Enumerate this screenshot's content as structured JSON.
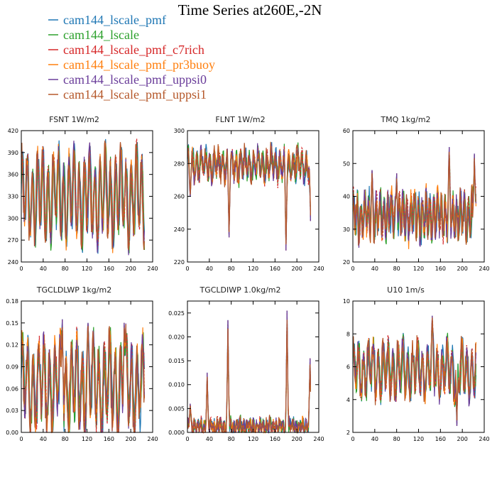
{
  "figure": {
    "title": "Time Series at260E,-2N"
  },
  "legend": [
    {
      "name": "cam144_lscale_pmf",
      "color": "#1f77b4"
    },
    {
      "name": "cam144_lscale",
      "color": "#2ca02c"
    },
    {
      "name": "cam144_lscale_pmf_c7rich",
      "color": "#d62728"
    },
    {
      "name": "cam144_lscale_pmf_pr3buoy",
      "color": "#ff7f0e"
    },
    {
      "name": "cam144_lscale_pmf_uppsi0",
      "color": "#6a3d9a"
    },
    {
      "name": "cam144_lscale_pmf_uppsi1",
      "color": "#b5582a"
    }
  ],
  "chart_data": [
    {
      "type": "line",
      "title": "FSNT   1W/m2",
      "xlim": [
        0,
        240
      ],
      "ylim": [
        240,
        420
      ],
      "xticks": [
        "0",
        "40",
        "80",
        "120",
        "160",
        "200",
        "240"
      ],
      "yticks": [
        "240",
        "270",
        "300",
        "330",
        "360",
        "390",
        "420"
      ],
      "x_count": 226,
      "signal": {
        "base": 330,
        "amplitude": 50,
        "period": 9.5,
        "noise": 14,
        "spikes": []
      },
      "series_names": [
        "cam144_lscale_pmf",
        "cam144_lscale",
        "cam144_lscale_pmf_c7rich",
        "cam144_lscale_pmf_pr3buoy",
        "cam144_lscale_pmf_uppsi0",
        "cam144_lscale_pmf_uppsi1"
      ]
    },
    {
      "type": "line",
      "title": "FLNT   1W/m2",
      "xlim": [
        0,
        240
      ],
      "ylim": [
        220,
        300
      ],
      "xticks": [
        "0",
        "40",
        "80",
        "120",
        "160",
        "200",
        "240"
      ],
      "yticks": [
        "220",
        "240",
        "260",
        "280",
        "300"
      ],
      "x_count": 226,
      "signal": {
        "base": 279,
        "amplitude": 7,
        "period": 8,
        "noise": 5,
        "spikes": [
          {
            "x": 5,
            "y": 260
          },
          {
            "x": 76,
            "y": 235
          },
          {
            "x": 180,
            "y": 227
          },
          {
            "x": 225,
            "y": 245
          }
        ]
      },
      "series_names": [
        "cam144_lscale_pmf",
        "cam144_lscale",
        "cam144_lscale_pmf_c7rich",
        "cam144_lscale_pmf_pr3buoy",
        "cam144_lscale_pmf_uppsi0",
        "cam144_lscale_pmf_uppsi1"
      ]
    },
    {
      "type": "line",
      "title": "TMQ   1kg/m2",
      "xlim": [
        0,
        240
      ],
      "ylim": [
        20,
        60
      ],
      "xticks": [
        "0",
        "40",
        "80",
        "120",
        "160",
        "200",
        "240"
      ],
      "yticks": [
        "20",
        "30",
        "40",
        "50",
        "60"
      ],
      "x_count": 226,
      "signal": {
        "base": 34,
        "amplitude": 5,
        "period": 7,
        "noise": 3.5,
        "spikes": [
          {
            "x": 35,
            "y": 48
          },
          {
            "x": 80,
            "y": 47
          },
          {
            "x": 176,
            "y": 55
          },
          {
            "x": 222,
            "y": 53
          }
        ]
      },
      "series_names": [
        "cam144_lscale_pmf",
        "cam144_lscale",
        "cam144_lscale_pmf_c7rich",
        "cam144_lscale_pmf_pr3buoy",
        "cam144_lscale_pmf_uppsi0",
        "cam144_lscale_pmf_uppsi1"
      ]
    },
    {
      "type": "line",
      "title": "TGCLDLWP   1kg/m2",
      "xlim": [
        0,
        240
      ],
      "ylim": [
        0,
        0.18
      ],
      "xticks": [
        "0",
        "40",
        "80",
        "120",
        "160",
        "200",
        "240"
      ],
      "yticks": [
        "0.00",
        "0.03",
        "0.06",
        "0.09",
        "0.12",
        "0.15",
        "0.18"
      ],
      "x_count": 226,
      "signal": {
        "base": 0.065,
        "amplitude": 0.05,
        "period": 10,
        "noise": 0.02,
        "spikes": [
          {
            "x": 75,
            "y": 0.155
          },
          {
            "x": 122,
            "y": 0.15
          },
          {
            "x": 188,
            "y": 0.15
          }
        ]
      },
      "series_names": [
        "cam144_lscale_pmf",
        "cam144_lscale",
        "cam144_lscale_pmf_c7rich",
        "cam144_lscale_pmf_pr3buoy",
        "cam144_lscale_pmf_uppsi0",
        "cam144_lscale_pmf_uppsi1"
      ]
    },
    {
      "type": "line",
      "title": "TGCLDIWP   1.0kg/m2",
      "xlim": [
        0,
        240
      ],
      "ylim": [
        0,
        0.0275
      ],
      "xticks": [
        "0",
        "40",
        "80",
        "120",
        "160",
        "200",
        "240"
      ],
      "yticks": [
        "0.000",
        "0.005",
        "0.010",
        "0.015",
        "0.020",
        "0.025"
      ],
      "x_count": 226,
      "signal": {
        "base": 0.0012,
        "amplitude": 0.001,
        "period": 6,
        "noise": 0.0012,
        "spikes": [
          {
            "x": 5,
            "y": 0.006
          },
          {
            "x": 36,
            "y": 0.0125
          },
          {
            "x": 74,
            "y": 0.0235
          },
          {
            "x": 182,
            "y": 0.0255
          },
          {
            "x": 224,
            "y": 0.0155
          }
        ]
      },
      "series_names": [
        "cam144_lscale_pmf",
        "cam144_lscale",
        "cam144_lscale_pmf_c7rich",
        "cam144_lscale_pmf_pr3buoy",
        "cam144_lscale_pmf_uppsi0",
        "cam144_lscale_pmf_uppsi1"
      ]
    },
    {
      "type": "line",
      "title": "U10   1m/s",
      "xlim": [
        0,
        240
      ],
      "ylim": [
        2,
        10
      ],
      "xticks": [
        "0",
        "40",
        "80",
        "120",
        "160",
        "200",
        "240"
      ],
      "yticks": [
        "2",
        "4",
        "6",
        "8",
        "10"
      ],
      "x_count": 226,
      "signal": {
        "base": 5.8,
        "amplitude": 1.3,
        "period": 9,
        "noise": 0.6,
        "spikes": [
          {
            "x": 145,
            "y": 9.1
          },
          {
            "x": 190,
            "y": 2.4
          },
          {
            "x": 230,
            "y": 3.4
          }
        ]
      },
      "series_names": [
        "cam144_lscale_pmf",
        "cam144_lscale",
        "cam144_lscale_pmf_c7rich",
        "cam144_lscale_pmf_pr3buoy",
        "cam144_lscale_pmf_uppsi0",
        "cam144_lscale_pmf_uppsi1"
      ]
    }
  ]
}
